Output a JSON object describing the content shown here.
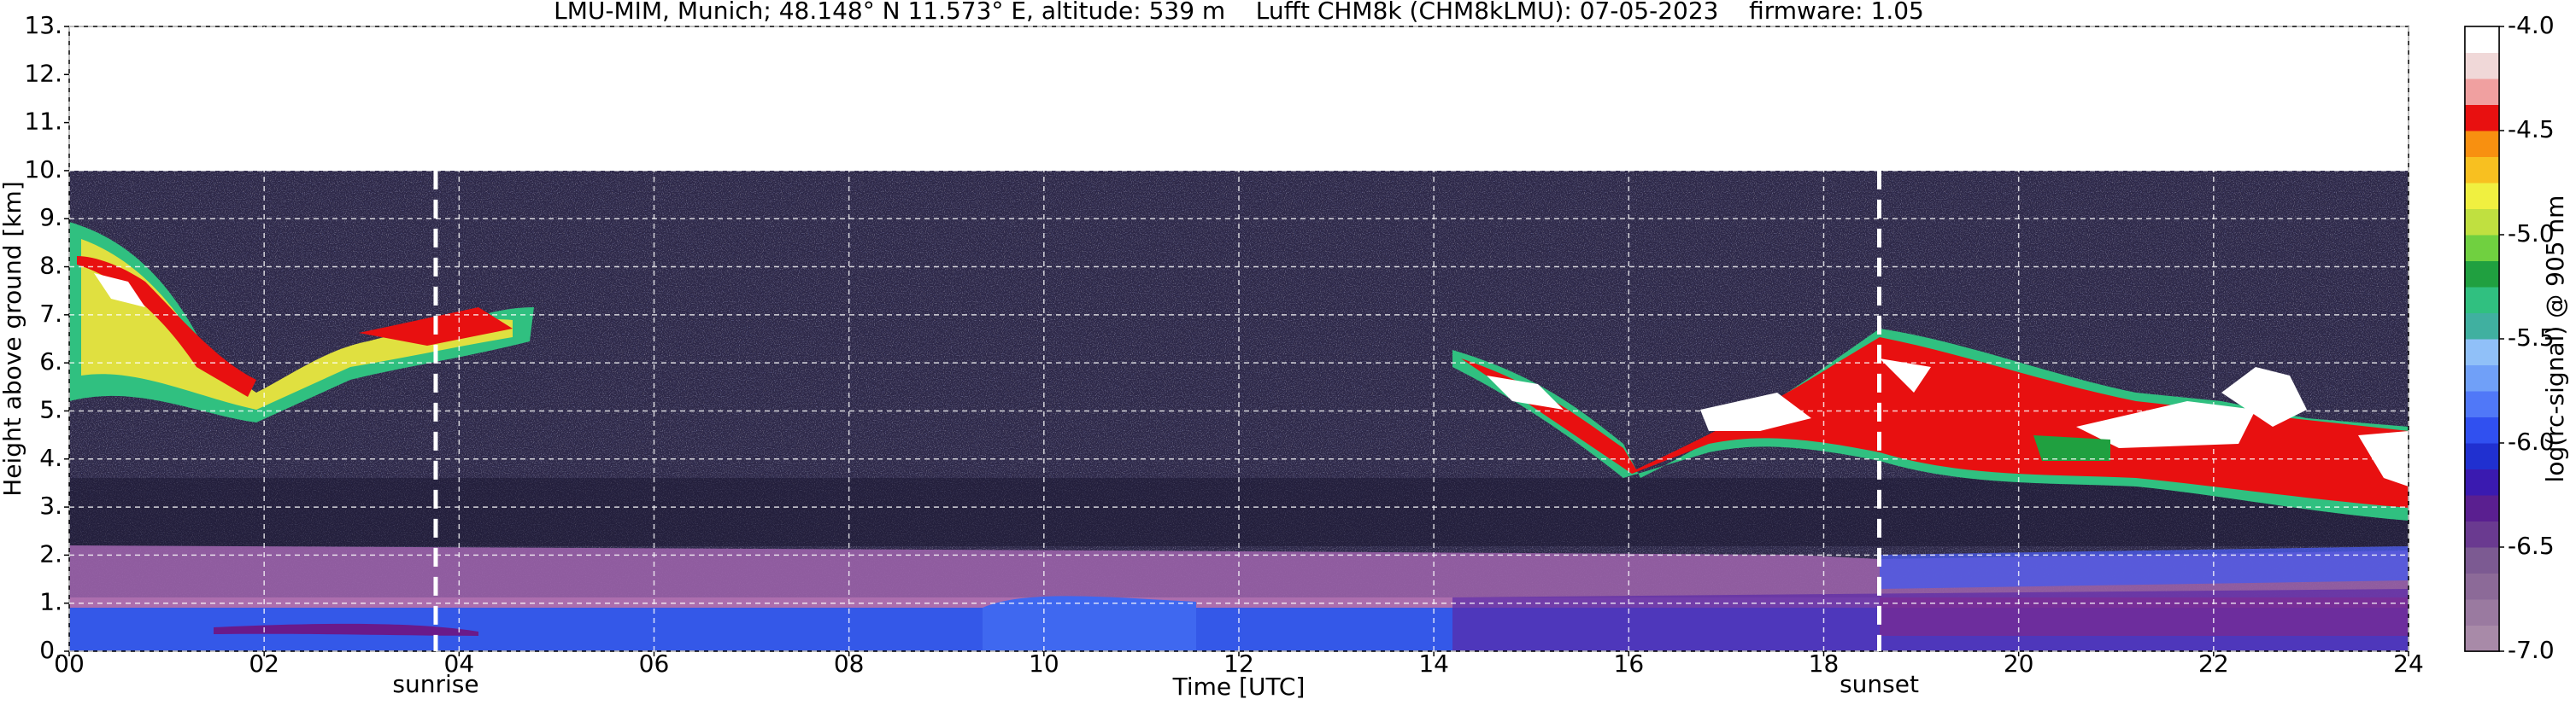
{
  "chart_data": {
    "type": "heatmap",
    "title": "LMU-MIM, Munich; 48.148° N 11.573° E, altitude: 539 m    Lufft CHM8k (CHM8kLMU): 07-05-2023    firmware: 1.05",
    "xlabel": "Time [UTC]",
    "ylabel": "Height above ground [km]",
    "xlim": [
      0,
      24
    ],
    "xticks": [
      {
        "value": 0,
        "label": "00"
      },
      {
        "value": 2,
        "label": "02"
      },
      {
        "value": 4,
        "label": "04"
      },
      {
        "value": 6,
        "label": "06"
      },
      {
        "value": 8,
        "label": "08"
      },
      10,
      12,
      14,
      16,
      18,
      20,
      22,
      24
    ],
    "ylim": [
      0,
      13
    ],
    "yticks": [
      {
        "value": 0,
        "label": "0."
      },
      {
        "value": 1,
        "label": "1."
      },
      {
        "value": 2,
        "label": "2."
      },
      {
        "value": 3,
        "label": "3."
      },
      {
        "value": 4,
        "label": "4."
      },
      {
        "value": 5,
        "label": "5."
      },
      {
        "value": 6,
        "label": "6."
      },
      {
        "value": 7,
        "label": "7."
      },
      {
        "value": 8,
        "label": "8."
      },
      {
        "value": 9,
        "label": "9."
      },
      {
        "value": 10,
        "label": "10."
      },
      {
        "value": 11,
        "label": "11."
      },
      {
        "value": 12,
        "label": "12."
      },
      {
        "value": 13,
        "label": "13."
      }
    ],
    "grid": true,
    "annotations": [
      {
        "text": "sunrise",
        "x": 3.76
      },
      {
        "text": "sunset",
        "x": 18.57
      }
    ],
    "colorbar": {
      "label": "log(rc-signal) @ 905 nm",
      "lim": [
        -7,
        -4
      ],
      "ticks": [
        {
          "value": -7,
          "label": "-7.0"
        },
        -6.5,
        {
          "value": -6,
          "label": "-6.0"
        },
        -5.5,
        {
          "value": -5,
          "label": "-5.0"
        },
        -4.5,
        {
          "value": -4,
          "label": "-4.0"
        }
      ],
      "colors": [
        "#a88aa8",
        "#9a7aa0",
        "#8c6a98",
        "#7c5a92",
        "#6a3a90",
        "#5a1f90",
        "#3a1ab0",
        "#2030d0",
        "#3050f0",
        "#5078f8",
        "#70a0f8",
        "#90c0f8",
        "#40b0a0",
        "#30c080",
        "#20a040",
        "#70d040",
        "#c0e040",
        "#f0f040",
        "#f8c020",
        "#f89010",
        "#e81010",
        "#f0a0a0",
        "#f0d8d8",
        "#ffffff"
      ]
    }
  }
}
